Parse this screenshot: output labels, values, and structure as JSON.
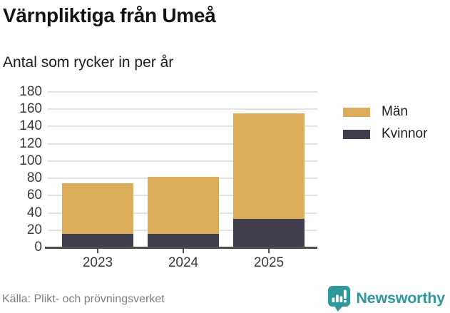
{
  "header": {
    "title": "Värnpliktiga från Umeå",
    "subtitle": "Antal som rycker in per år"
  },
  "chart_data": {
    "type": "bar",
    "stacked": true,
    "title": "Värnpliktiga från Umeå",
    "subtitle": "Antal som rycker in per år",
    "categories": [
      "2023",
      "2024",
      "2025"
    ],
    "series": [
      {
        "name": "Män",
        "color": "#DBAC5A",
        "values": [
          58,
          66,
          122
        ]
      },
      {
        "name": "Kvinnor",
        "color": "#413F4D",
        "values": [
          16,
          16,
          33
        ]
      }
    ],
    "stack_totals": [
      74,
      82,
      155
    ],
    "xlabel": "",
    "ylabel": "",
    "ylim": [
      0,
      180
    ],
    "ytick_step": 20,
    "yticks": [
      0,
      20,
      40,
      60,
      80,
      100,
      120,
      140,
      160,
      180
    ],
    "grid": true,
    "legend_position": "right"
  },
  "footer": {
    "source": "Källa: Plikt- och prövningsverket",
    "brand": "Newsworthy"
  },
  "colors": {
    "bar_men": "#DBAC5A",
    "bar_women": "#413F4D",
    "gridline": "#e3e3e3",
    "axis": "#4d4d4d",
    "text": "#1d1d1d",
    "muted_text": "#7e7f86",
    "brand_teal": "#2e989b"
  }
}
